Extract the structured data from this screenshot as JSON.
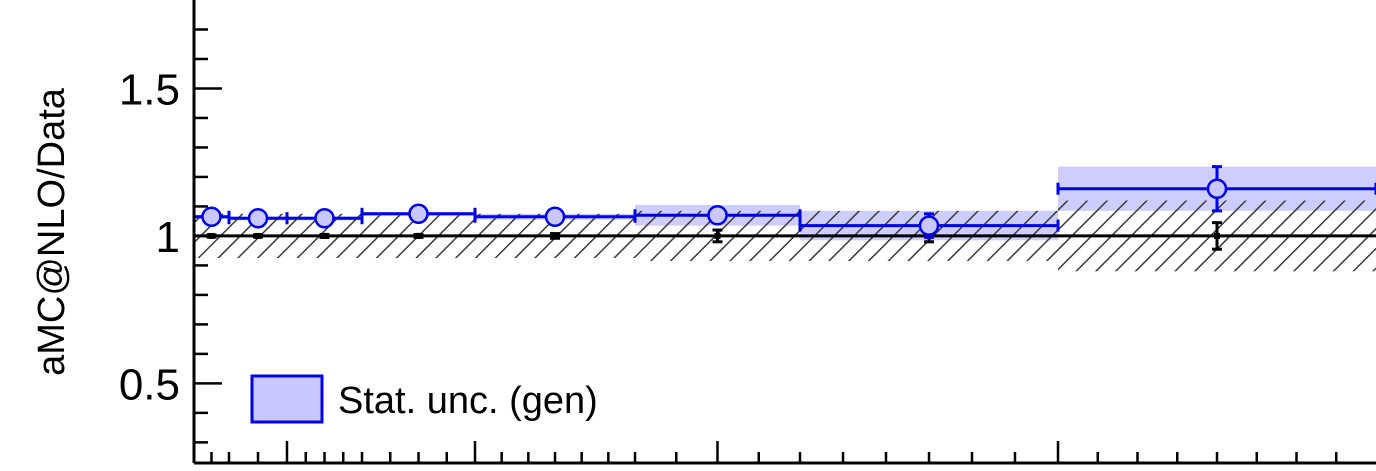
{
  "chart_data": {
    "type": "line",
    "ylabel": "aMC@NLO/Data",
    "xlabel": "",
    "ylim": [
      0.23,
      1.8
    ],
    "yticks": [
      {
        "value": 0.5,
        "label": "0.5"
      },
      {
        "value": 1.0,
        "label": "1"
      },
      {
        "value": 1.5,
        "label": "1.5"
      }
    ],
    "reference_line": 1.0,
    "series": [
      {
        "name": "Stat. unc. (gen)",
        "color": "#0000e6",
        "fill_color": "#c8c8ff",
        "bins": [
          {
            "x_low": 0.0,
            "x_high": 0.5,
            "x": 0.25,
            "y": 1.065,
            "err": 0.008,
            "band": 0.006
          },
          {
            "x_low": 0.5,
            "x_high": 1.0,
            "x": 0.75,
            "y": 1.06,
            "err": 0.008,
            "band": 0.006
          },
          {
            "x_low": 1.0,
            "x_high": 2.0,
            "x": 1.5,
            "y": 1.06,
            "err": 0.008,
            "band": 0.006
          },
          {
            "x_low": 2.0,
            "x_high": 3.0,
            "x": 2.5,
            "y": 1.075,
            "err": 0.008,
            "band": 0.006
          },
          {
            "x_low": 3.0,
            "x_high": 4.5,
            "x": 3.75,
            "y": 1.065,
            "err": 0.008,
            "band": 0.01
          },
          {
            "x_low": 4.5,
            "x_high": 5.5,
            "x": 5.0,
            "y": 1.07,
            "err": 0.01,
            "band": 0.035
          },
          {
            "x_low": 5.5,
            "x_high": 7.0,
            "x": 6.25,
            "y": 1.035,
            "err": 0.04,
            "band": 0.05
          },
          {
            "x_low": 7.0,
            "x_high": 9.0,
            "x": 8.0,
            "y": 1.16,
            "err": 0.075,
            "band": 0.075
          }
        ]
      }
    ],
    "data_ratio": {
      "bins": [
        {
          "x": 0.25,
          "y": 1.0,
          "err": 0.004
        },
        {
          "x": 0.75,
          "y": 1.0,
          "err": 0.004
        },
        {
          "x": 1.5,
          "y": 1.0,
          "err": 0.005
        },
        {
          "x": 2.5,
          "y": 1.0,
          "err": 0.005
        },
        {
          "x": 3.75,
          "y": 1.0,
          "err": 0.008
        },
        {
          "x": 5.0,
          "y": 1.0,
          "err": 0.02
        },
        {
          "x": 6.25,
          "y": 1.0,
          "err": 0.02
        },
        {
          "x": 8.0,
          "y": 1.0,
          "err": 0.045
        }
      ],
      "syst_band": [
        {
          "x_low": 0.0,
          "x_high": 4.5,
          "halfwidth": 0.075
        },
        {
          "x_low": 4.5,
          "x_high": 7.0,
          "halfwidth": 0.085
        },
        {
          "x_low": 7.0,
          "x_high": 9.0,
          "halfwidth": 0.12
        }
      ]
    },
    "legend": [
      {
        "label": "Stat. unc. (gen)",
        "position": "bottom-left"
      }
    ],
    "grid": false
  }
}
